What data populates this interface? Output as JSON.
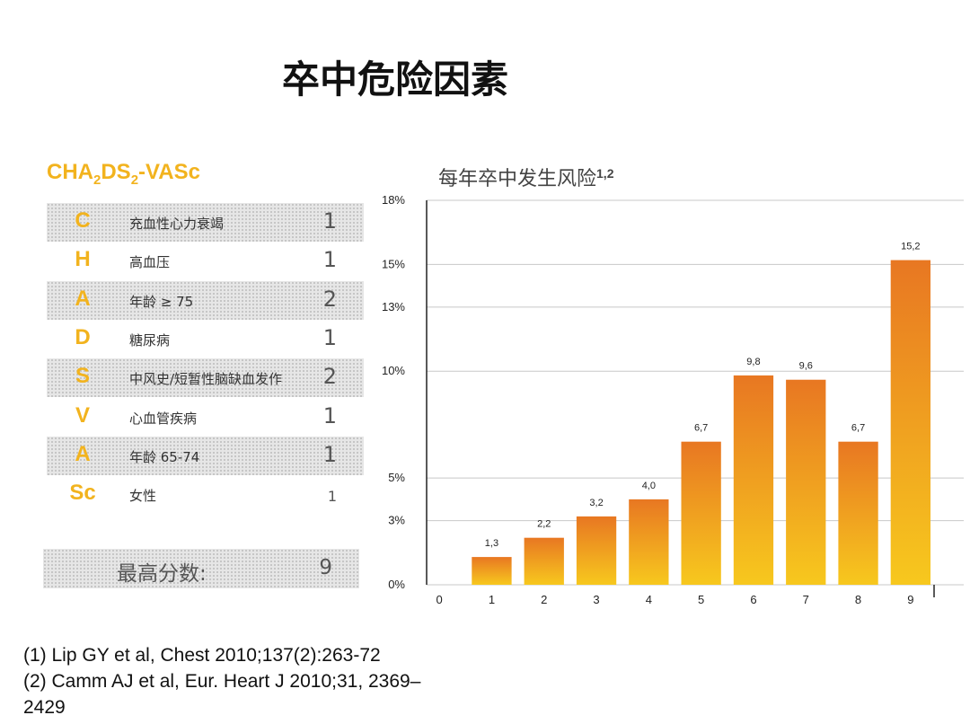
{
  "title": "卒中危险因素",
  "table": {
    "heading": [
      "CHA",
      "2",
      "DS",
      "2",
      "-VASc"
    ],
    "rows": [
      [
        "C",
        "充血性心力衰竭",
        "1"
      ],
      [
        "H",
        "高血压",
        "1"
      ],
      [
        "A",
        "年龄 ≥ 75",
        "2"
      ],
      [
        "D",
        "糖尿病",
        "1"
      ],
      [
        "S",
        "中风史/短暂性脑缺血发作",
        "2"
      ],
      [
        "V",
        "心血管疾病",
        "1"
      ],
      [
        "A",
        "年龄 65-74",
        "1"
      ],
      [
        "Sc",
        "女性",
        "1"
      ]
    ],
    "total_label": "最高分数:",
    "total_value": "9"
  },
  "references": [
    "(1) Lip GY et al, Chest 2010;137(2):263-72",
    "(2) Camm AJ et al, Eur. Heart J 2010;31, 2369–2429"
  ],
  "chart_data": {
    "type": "bar",
    "title": "每年卒中发生风险",
    "title_sup": "1,2",
    "categories": [
      "0",
      "1",
      "2",
      "3",
      "4",
      "5",
      "6",
      "7",
      "8",
      "9"
    ],
    "values": [
      null,
      1.3,
      2.2,
      3.2,
      4.0,
      6.7,
      9.8,
      9.6,
      6.7,
      15.2
    ],
    "value_labels": [
      null,
      "1,3",
      "2,2",
      "3,2",
      "4,0",
      "6,7",
      "9,8",
      "9,6",
      "6,7",
      "15,2"
    ],
    "color_top": "#e87722",
    "color_bottom": "#f7c81e",
    "ylim": [
      0,
      18
    ],
    "yticks": [
      {
        "value": 0,
        "label": "0%"
      },
      {
        "value": 3,
        "label": "3%"
      },
      {
        "value": 5,
        "label": "5%"
      },
      {
        "value": 10,
        "label": "10%"
      },
      {
        "value": 13,
        "label": "13%"
      },
      {
        "value": 15,
        "label": "15%"
      },
      {
        "value": 18,
        "label": "18%"
      }
    ],
    "grid": true
  }
}
